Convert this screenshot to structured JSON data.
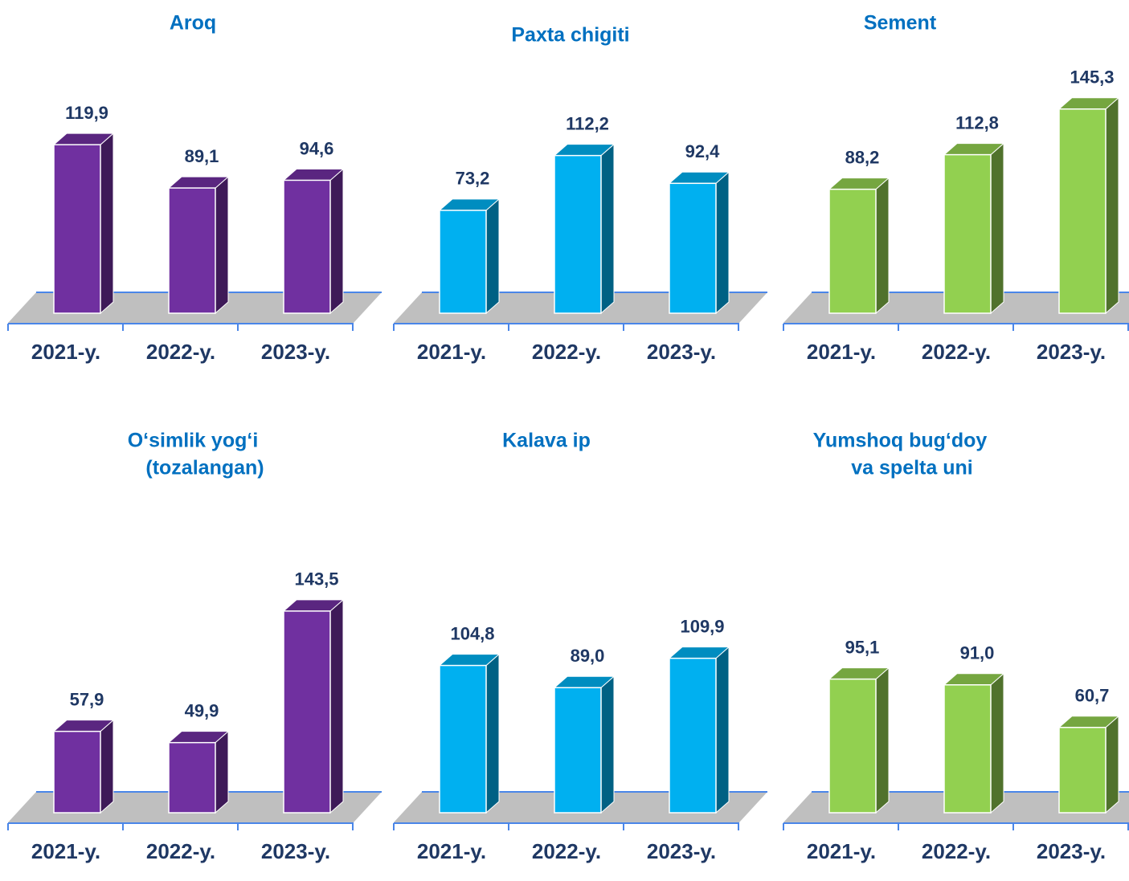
{
  "chart_data": [
    {
      "type": "bar",
      "title": [
        "Aroq"
      ],
      "categories": [
        "2021-y.",
        "2022-y.",
        "2023-y."
      ],
      "values": [
        119.9,
        89.1,
        94.6
      ],
      "value_labels": [
        "119,9",
        "89,1",
        "94,6"
      ],
      "color": "#7030a0"
    },
    {
      "type": "bar",
      "title": [
        "Paxta chigiti"
      ],
      "categories": [
        "2021-y.",
        "2022-y.",
        "2023-y."
      ],
      "values": [
        73.2,
        112.2,
        92.4
      ],
      "value_labels": [
        "73,2",
        "112,2",
        "92,4"
      ],
      "color": "#00b0f0"
    },
    {
      "type": "bar",
      "title": [
        "Sement"
      ],
      "categories": [
        "2021-y.",
        "2022-y.",
        "2023-y."
      ],
      "values": [
        88.2,
        112.8,
        145.3
      ],
      "value_labels": [
        "88,2",
        "112,8",
        "145,3"
      ],
      "color": "#92d050"
    },
    {
      "type": "bar",
      "title": [
        "O‘simlik yog‘i",
        "(tozalangan)"
      ],
      "categories": [
        "2021-y.",
        "2022-y.",
        "2023-y."
      ],
      "values": [
        57.9,
        49.9,
        143.5
      ],
      "value_labels": [
        "57,9",
        "49,9",
        "143,5"
      ],
      "color": "#7030a0"
    },
    {
      "type": "bar",
      "title": [
        "Kalava ip"
      ],
      "categories": [
        "2021-y.",
        "2022-y.",
        "2023-y."
      ],
      "values": [
        104.8,
        89.0,
        109.9
      ],
      "value_labels": [
        "104,8",
        "89,0",
        "109,9"
      ],
      "color": "#00b0f0"
    },
    {
      "type": "bar",
      "title": [
        "Yumshoq bug‘doy",
        "va spelta uni"
      ],
      "categories": [
        "2021-y.",
        "2022-y.",
        "2023-y."
      ],
      "values": [
        95.1,
        91.0,
        60.7
      ],
      "value_labels": [
        "95,1",
        "91,0",
        "60,7"
      ],
      "color": "#92d050"
    }
  ]
}
